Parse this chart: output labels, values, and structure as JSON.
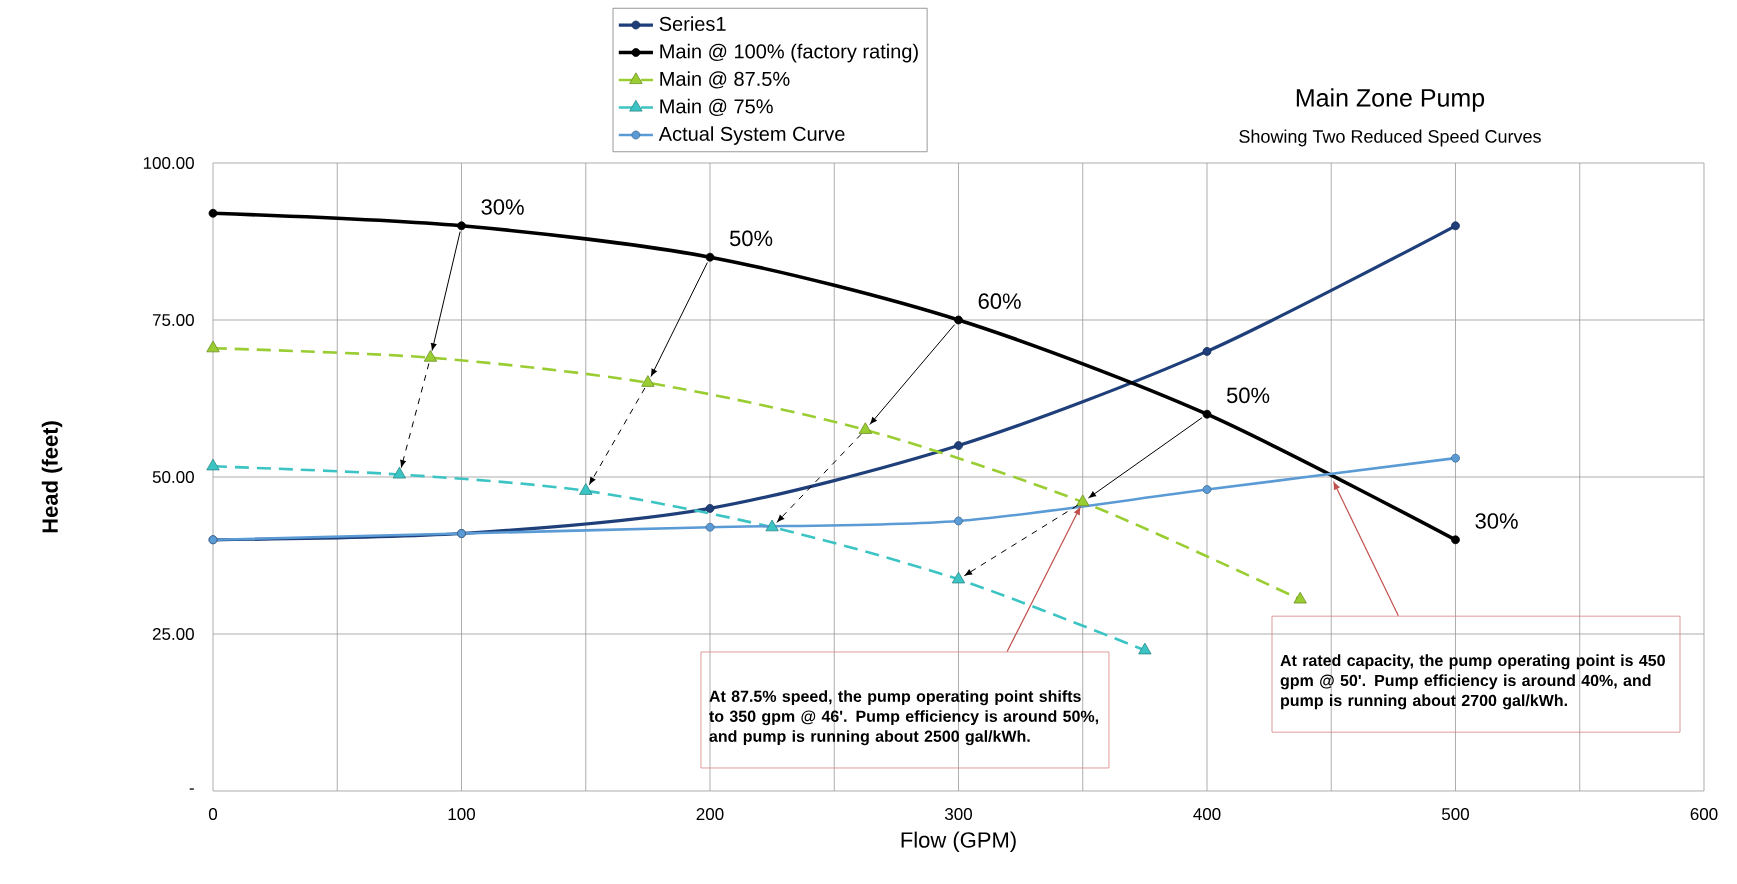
{
  "chart_data": {
    "type": "line",
    "title": "Main Zone Pump",
    "subtitle": "Showing Two Reduced Speed Curves",
    "xlabel": "Flow (GPM)",
    "ylabel": "Head (feet)",
    "xlim": [
      0,
      600
    ],
    "ylim": [
      0,
      100
    ],
    "xticks": [
      0,
      {
        "value": 50,
        "label": null
      },
      100,
      {
        "value": 150,
        "label": null
      },
      200,
      {
        "value": 250,
        "label": null
      },
      300,
      {
        "value": 350,
        "label": null
      },
      400,
      {
        "value": 450,
        "label": null
      },
      500,
      {
        "value": 550,
        "label": null
      },
      600
    ],
    "yticks": [
      {
        "value": 0,
        "label": "-"
      },
      {
        "value": 25,
        "label": "25.00"
      },
      {
        "value": 50,
        "label": "50.00"
      },
      {
        "value": 75,
        "label": "75.00"
      },
      {
        "value": 100,
        "label": "100.00"
      }
    ],
    "grid": true,
    "legend": "top",
    "series": [
      {
        "name": "Series1",
        "color": "#1f3f7a",
        "marker": "circle",
        "line_style": "solid",
        "x": [
          0,
          100,
          200,
          300,
          400,
          500
        ],
        "values": [
          40,
          41,
          45,
          55,
          70,
          90
        ]
      },
      {
        "name": "Main @ 100% (factory rating)",
        "color": "#000000",
        "marker": "circle",
        "line_style": "solid",
        "x": [
          0,
          100,
          200,
          300,
          400,
          500
        ],
        "values": [
          92,
          90,
          85,
          75,
          60,
          40
        ]
      },
      {
        "name": "Main @ 87.5%",
        "color": "#9acd32",
        "marker": "triangle",
        "line_style": "dashed",
        "x": [
          0,
          87.5,
          175,
          262.5,
          350,
          437.5
        ],
        "values": [
          70.5,
          69,
          65,
          57.5,
          46,
          30.5
        ]
      },
      {
        "name": "Main @ 75%",
        "color": "#3cc4c4",
        "marker": "triangle",
        "line_style": "dashed",
        "x": [
          0,
          75,
          150,
          225,
          300,
          375
        ],
        "values": [
          51.7,
          50.4,
          47.8,
          42,
          33.7,
          22.4
        ]
      },
      {
        "name": "Actual System Curve",
        "color": "#5b9bd5",
        "marker": "circle",
        "line_style": "solid",
        "x": [
          0,
          100,
          200,
          300,
          400,
          500
        ],
        "values": [
          40,
          41,
          42,
          43,
          48,
          53
        ]
      }
    ],
    "annotations": [
      {
        "text": "30%",
        "x": 100,
        "y": 90
      },
      {
        "text": "50%",
        "x": 200,
        "y": 85
      },
      {
        "text": "60%",
        "x": 300,
        "y": 75
      },
      {
        "text": "50%",
        "x": 400,
        "y": 60
      },
      {
        "text": "30%",
        "x": 500,
        "y": 40
      },
      "At 87.5% speed, the pump operating point shifts to 350 gpm @ 46'.  Pump efficiency is around 50%, and pump is running about 2500 gal/kWh.",
      "At rated capacity, the pump operating point is 450 gpm @ 50'. Pump efficiency is around 40%, and pump is running about 2700 gal/kWh."
    ]
  }
}
